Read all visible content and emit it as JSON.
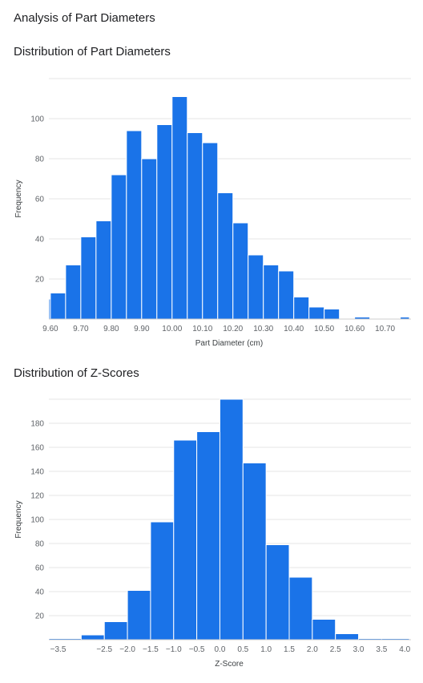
{
  "page": {
    "title": "Analysis of Part Diameters"
  },
  "chart_data": [
    {
      "type": "bar",
      "title": "Distribution of Part Diameters",
      "xlabel": "Part Diameter (cm)",
      "ylabel": "Frequency",
      "xlim": [
        9.595,
        10.78
      ],
      "ylim": [
        0,
        120
      ],
      "yticks": [
        20,
        40,
        60,
        80,
        100
      ],
      "xticks": [
        9.6,
        9.7,
        9.8,
        9.9,
        10.0,
        10.1,
        10.2,
        10.3,
        10.4,
        10.5,
        10.6,
        10.7
      ],
      "xtick_labels": [
        "9.60",
        "9.70",
        "9.80",
        "9.90",
        "10.00",
        "10.10",
        "10.20",
        "10.30",
        "10.40",
        "10.50",
        "10.60",
        "10.70"
      ],
      "grid": true,
      "color": "#1a73e8",
      "bins": [
        {
          "x0": 9.595,
          "x1": 9.6,
          "count": 10
        },
        {
          "x0": 9.6,
          "x1": 9.65,
          "count": 13
        },
        {
          "x0": 9.65,
          "x1": 9.7,
          "count": 27
        },
        {
          "x0": 9.7,
          "x1": 9.75,
          "count": 41
        },
        {
          "x0": 9.75,
          "x1": 9.8,
          "count": 49
        },
        {
          "x0": 9.8,
          "x1": 9.85,
          "count": 72
        },
        {
          "x0": 9.85,
          "x1": 9.9,
          "count": 94
        },
        {
          "x0": 9.9,
          "x1": 9.95,
          "count": 80
        },
        {
          "x0": 9.95,
          "x1": 10.0,
          "count": 97
        },
        {
          "x0": 10.0,
          "x1": 10.05,
          "count": 111
        },
        {
          "x0": 10.05,
          "x1": 10.1,
          "count": 93
        },
        {
          "x0": 10.1,
          "x1": 10.15,
          "count": 88
        },
        {
          "x0": 10.15,
          "x1": 10.2,
          "count": 63
        },
        {
          "x0": 10.2,
          "x1": 10.25,
          "count": 48
        },
        {
          "x0": 10.25,
          "x1": 10.3,
          "count": 32
        },
        {
          "x0": 10.3,
          "x1": 10.35,
          "count": 27
        },
        {
          "x0": 10.35,
          "x1": 10.4,
          "count": 24
        },
        {
          "x0": 10.4,
          "x1": 10.45,
          "count": 11
        },
        {
          "x0": 10.45,
          "x1": 10.5,
          "count": 6
        },
        {
          "x0": 10.5,
          "x1": 10.55,
          "count": 5
        },
        {
          "x0": 10.55,
          "x1": 10.6,
          "count": 0
        },
        {
          "x0": 10.6,
          "x1": 10.65,
          "count": 1
        },
        {
          "x0": 10.65,
          "x1": 10.7,
          "count": 0
        },
        {
          "x0": 10.7,
          "x1": 10.75,
          "count": 0
        },
        {
          "x0": 10.75,
          "x1": 10.78,
          "count": 1
        }
      ]
    },
    {
      "type": "bar",
      "title": "Distribution of Z-Scores",
      "xlabel": "Z-Score",
      "ylabel": "Frequency",
      "xlim": [
        -3.7,
        4.1
      ],
      "ylim": [
        0,
        200
      ],
      "yticks": [
        20,
        40,
        60,
        80,
        100,
        120,
        140,
        160,
        180
      ],
      "xticks": [
        -3.5,
        -2.5,
        -2.0,
        -1.5,
        -1.0,
        -0.5,
        0.0,
        0.5,
        1.0,
        1.5,
        2.0,
        2.5,
        3.0,
        3.5,
        4.0
      ],
      "xtick_labels": [
        "−3.5",
        "−2.5",
        "−2.0",
        "−1.5",
        "−1.0",
        "−0.5",
        "0.0",
        "0.5",
        "1.0",
        "1.5",
        "2.0",
        "2.5",
        "3.0",
        "3.5",
        "4.0"
      ],
      "grid": true,
      "color": "#1a73e8",
      "bins": [
        {
          "x0": -3.7,
          "x1": -3.0,
          "count": 1
        },
        {
          "x0": -3.0,
          "x1": -2.5,
          "count": 4
        },
        {
          "x0": -2.5,
          "x1": -2.0,
          "count": 15
        },
        {
          "x0": -2.0,
          "x1": -1.5,
          "count": 41
        },
        {
          "x0": -1.5,
          "x1": -1.0,
          "count": 98
        },
        {
          "x0": -1.0,
          "x1": -0.5,
          "count": 166
        },
        {
          "x0": -0.5,
          "x1": 0.0,
          "count": 173
        },
        {
          "x0": 0.0,
          "x1": 0.5,
          "count": 200
        },
        {
          "x0": 0.5,
          "x1": 1.0,
          "count": 147
        },
        {
          "x0": 1.0,
          "x1": 1.5,
          "count": 79
        },
        {
          "x0": 1.5,
          "x1": 2.0,
          "count": 52
        },
        {
          "x0": 2.0,
          "x1": 2.5,
          "count": 17
        },
        {
          "x0": 2.5,
          "x1": 3.0,
          "count": 5
        },
        {
          "x0": 3.0,
          "x1": 3.5,
          "count": 1
        },
        {
          "x0": 3.5,
          "x1": 4.1,
          "count": 1
        }
      ]
    }
  ]
}
